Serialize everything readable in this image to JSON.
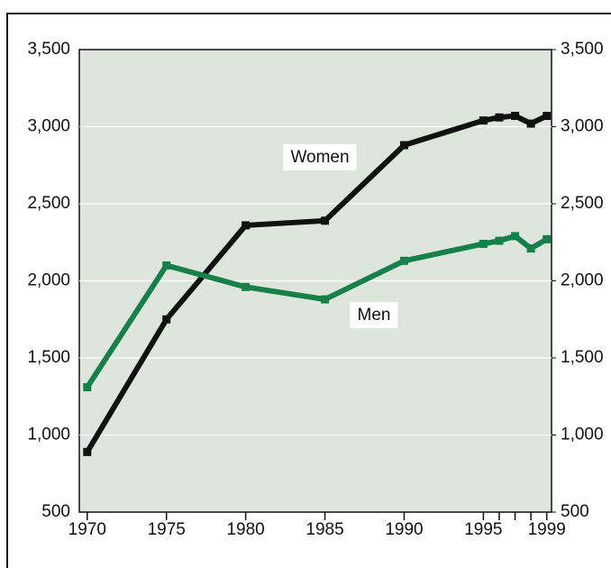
{
  "chart_data": {
    "type": "line",
    "x": [
      1970,
      1975,
      1980,
      1985,
      1990,
      1995,
      1996,
      1997,
      1998,
      1999
    ],
    "series": [
      {
        "name": "Women",
        "color": "#111111",
        "values": [
          890,
          1750,
          2360,
          2390,
          2880,
          3040,
          3060,
          3070,
          3020,
          3070
        ]
      },
      {
        "name": "Men",
        "color": "#16804a",
        "values": [
          1310,
          2100,
          1960,
          1880,
          2130,
          2240,
          2260,
          2290,
          2210,
          2270
        ]
      }
    ],
    "xlim": [
      1969.5,
      1999.3
    ],
    "xticks": [
      1970,
      1975,
      1980,
      1985,
      1990,
      1995,
      1999
    ],
    "xminorticks": [
      1996,
      1997,
      1998
    ],
    "ylim": [
      500,
      3500
    ],
    "yticks": [
      {
        "value": 500,
        "label": "500"
      },
      {
        "value": 1000,
        "label": "1,000"
      },
      {
        "value": 1500,
        "label": "1,500"
      },
      {
        "value": 2000,
        "label": "2,000"
      },
      {
        "value": 2500,
        "label": "2,500"
      },
      {
        "value": 3000,
        "label": "3,000"
      },
      {
        "value": 3500,
        "label": "3,500"
      }
    ],
    "y2lim": [
      500,
      3500
    ],
    "y2ticks": [
      {
        "value": 500,
        "label": "500"
      },
      {
        "value": 1000,
        "label": "1,000"
      },
      {
        "value": 1500,
        "label": "1,500"
      },
      {
        "value": 2000,
        "label": "2,000"
      },
      {
        "value": 2500,
        "label": "2,500"
      },
      {
        "value": 3000,
        "label": "3,000"
      },
      {
        "value": 3500,
        "label": "3,500"
      }
    ],
    "grid": true,
    "background": "#dde5dc"
  }
}
